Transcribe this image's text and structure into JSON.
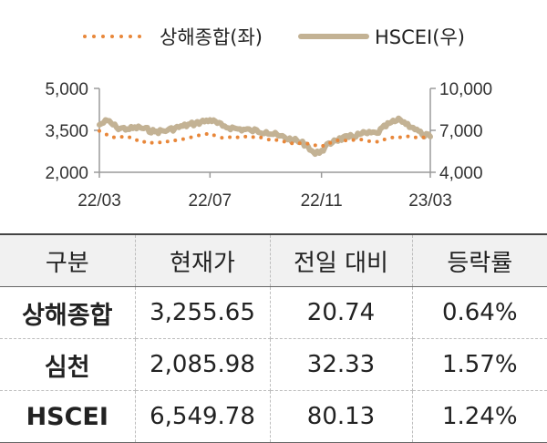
{
  "chart_data": {
    "type": "line",
    "x_start": "2022-03-01",
    "x_end": "2023-03-01",
    "x_ticks": [
      "22/03",
      "22/07",
      "22/11",
      "23/03"
    ],
    "y_left": {
      "range": [
        2000,
        5000
      ],
      "ticks": [
        "5,000",
        "3,500",
        "2,000"
      ]
    },
    "y_right": {
      "range": [
        4000,
        10000
      ],
      "ticks": [
        "10,000",
        "7,000",
        "4,000"
      ]
    },
    "grid": false,
    "legend": {
      "placement": "top-center"
    },
    "series": [
      {
        "name": "상해종합(좌)",
        "axis": "left",
        "style": "dotted",
        "color": "#E8873A",
        "points": [
          [
            "2022-03-01",
            3480
          ],
          [
            "2022-03-15",
            3250
          ],
          [
            "2022-04-01",
            3280
          ],
          [
            "2022-04-15",
            3100
          ],
          [
            "2022-05-01",
            3050
          ],
          [
            "2022-05-15",
            3100
          ],
          [
            "2022-06-01",
            3180
          ],
          [
            "2022-06-15",
            3300
          ],
          [
            "2022-07-01",
            3390
          ],
          [
            "2022-07-15",
            3230
          ],
          [
            "2022-08-01",
            3260
          ],
          [
            "2022-08-15",
            3270
          ],
          [
            "2022-09-01",
            3200
          ],
          [
            "2022-09-15",
            3120
          ],
          [
            "2022-10-01",
            3020
          ],
          [
            "2022-10-15",
            3030
          ],
          [
            "2022-11-01",
            2930
          ],
          [
            "2022-11-15",
            3120
          ],
          [
            "2022-12-01",
            3150
          ],
          [
            "2022-12-15",
            3170
          ],
          [
            "2023-01-01",
            3090
          ],
          [
            "2023-01-15",
            3230
          ],
          [
            "2023-02-01",
            3280
          ],
          [
            "2023-02-15",
            3250
          ],
          [
            "2023-03-01",
            3255.65
          ]
        ]
      },
      {
        "name": "HSCEI(우)",
        "axis": "right",
        "style": "solid",
        "color": "#C3B294",
        "points": [
          [
            "2022-03-01",
            7400
          ],
          [
            "2022-03-10",
            7700
          ],
          [
            "2022-03-20",
            7200
          ],
          [
            "2022-04-01",
            7100
          ],
          [
            "2022-04-15",
            7200
          ],
          [
            "2022-05-01",
            6900
          ],
          [
            "2022-05-15",
            7000
          ],
          [
            "2022-06-01",
            7300
          ],
          [
            "2022-06-15",
            7500
          ],
          [
            "2022-07-01",
            7750
          ],
          [
            "2022-07-15",
            7300
          ],
          [
            "2022-08-01",
            7100
          ],
          [
            "2022-08-15",
            7000
          ],
          [
            "2022-09-01",
            6900
          ],
          [
            "2022-09-15",
            6600
          ],
          [
            "2022-10-01",
            6300
          ],
          [
            "2022-10-15",
            6000
          ],
          [
            "2022-10-25",
            5300
          ],
          [
            "2022-11-01",
            5550
          ],
          [
            "2022-11-15",
            6300
          ],
          [
            "2022-12-01",
            6500
          ],
          [
            "2022-12-15",
            6750
          ],
          [
            "2023-01-01",
            6800
          ],
          [
            "2023-01-15",
            7500
          ],
          [
            "2023-01-27",
            7750
          ],
          [
            "2023-02-10",
            7200
          ],
          [
            "2023-02-20",
            6700
          ],
          [
            "2023-03-01",
            6549.78
          ]
        ]
      }
    ]
  },
  "table": {
    "headers": [
      "구분",
      "현재가",
      "전일 대비",
      "등락률"
    ],
    "rows": [
      [
        "상해종합",
        "3,255.65",
        "20.74",
        "0.64%"
      ],
      [
        "심천",
        "2,085.98",
        "32.33",
        "1.57%"
      ],
      [
        "HSCEI",
        "6,549.78",
        "80.13",
        "1.24%"
      ]
    ]
  }
}
